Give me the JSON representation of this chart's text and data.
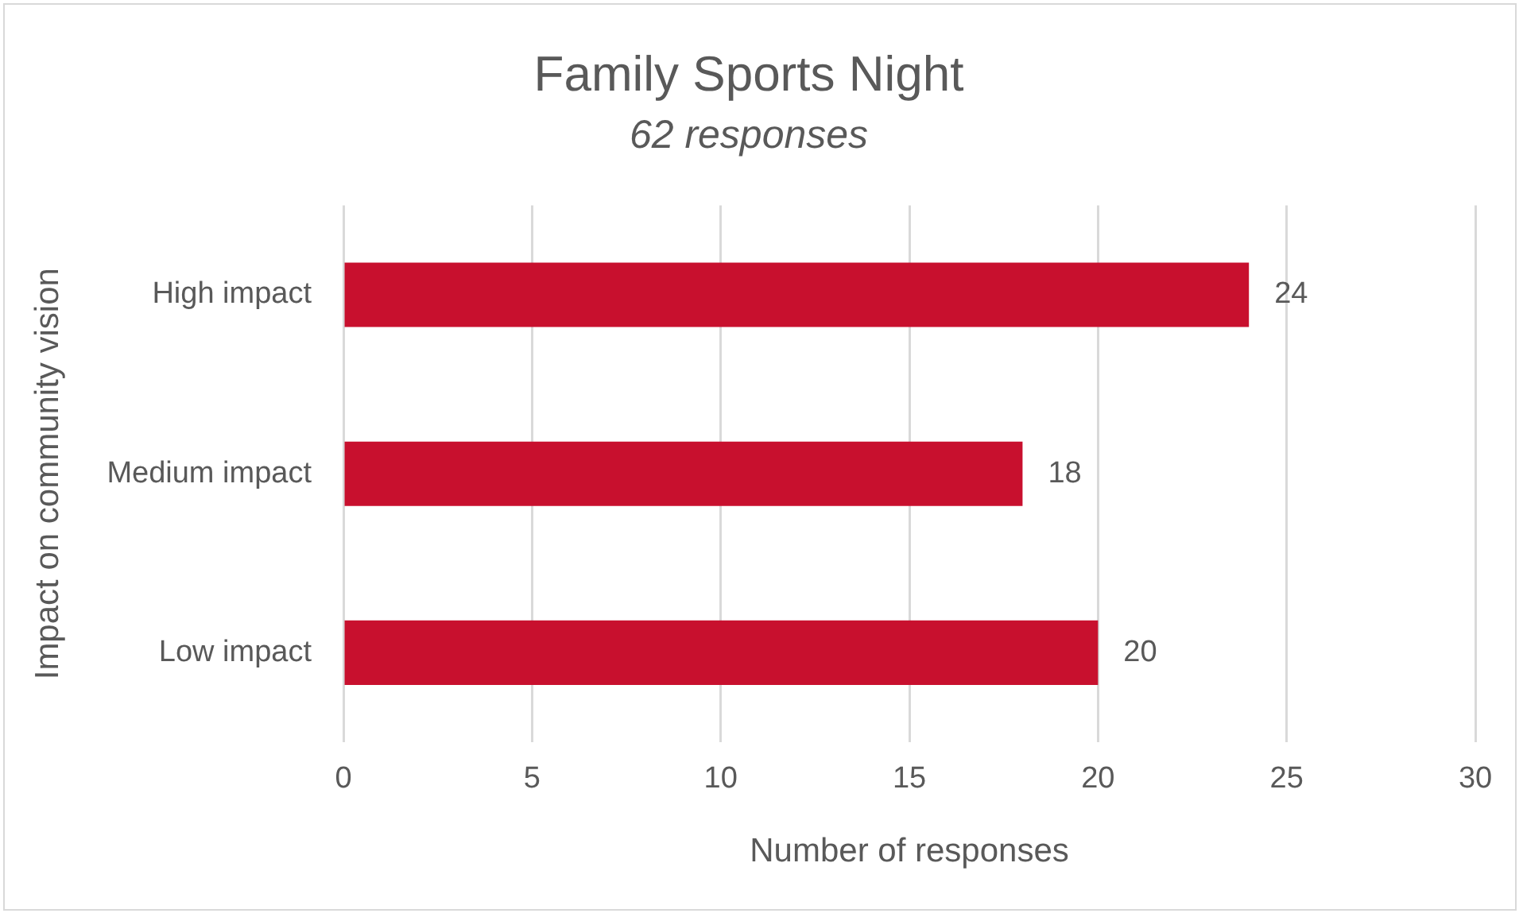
{
  "chart_data": {
    "type": "bar",
    "orientation": "horizontal",
    "title": "Family Sports Night",
    "subtitle": "62 responses",
    "xlabel": "Number of responses",
    "ylabel": "Impact on community vision",
    "categories": [
      "High impact",
      "Medium impact",
      "Low impact"
    ],
    "values": [
      24,
      18,
      20
    ],
    "color": "#c8102e",
    "xlim": [
      0,
      30
    ],
    "xticks": [
      0,
      5,
      10,
      15,
      20,
      25,
      30
    ],
    "grid": "x",
    "data_labels": true,
    "legend": false
  }
}
